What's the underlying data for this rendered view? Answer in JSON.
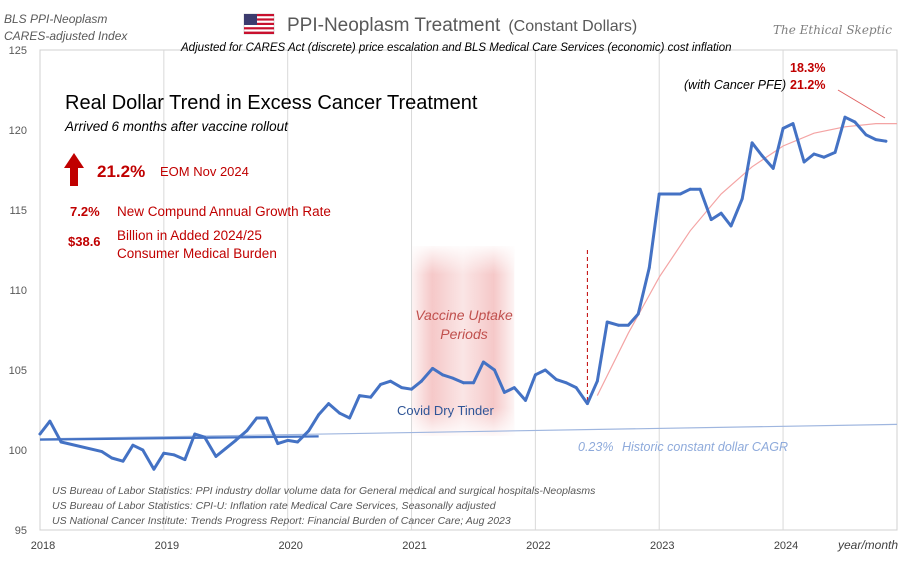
{
  "header": {
    "index_line1": "BLS PPI-Neoplasm",
    "index_line2": "CARES-adjusted Index",
    "title_main": "PPI-Neoplasm  Treatment",
    "title_suffix": "(Constant Dollars)",
    "subtitle": "Adjusted for CARES Act (discrete)  price escalation and BLS Medical Care Services (economic) cost inflation",
    "brand": "The Ethical Skeptic"
  },
  "annotations": {
    "headline": "Real Dollar Trend in Excess Cancer Treatment",
    "subheadline": "Arrived 6 months after vaccine rollout",
    "excess_value": "21.2%",
    "excess_label": "EOM Nov 2024",
    "cagr_value": "7.2%",
    "cagr_label": "New Compund Annual Growth Rate",
    "burden_value": "$38.6",
    "burden_label_1": "Billion in Added 2024/25",
    "burden_label_2": "Consumer Medical Burden",
    "vaccine_line1": "Vaccine Uptake",
    "vaccine_line2": "Periods",
    "dry_tinder": "Covid Dry Tinder",
    "historic_value": "0.23%",
    "historic_label": "Historic constant dollar CAGR",
    "pfe_value_top": "18.3%",
    "pfe_label": "(with Cancer PFE)",
    "pfe_value_bottom": "21.2%",
    "accent_color": "#c00000",
    "series_color": "#4472c4",
    "baseline_color": "#9fb6df",
    "trend_color": "#f4a4a4",
    "flag_icon": "us-flag-icon",
    "arrow_icon": "up-arrow-icon"
  },
  "sources": [
    "US Bureau of Labor Statistics: PPI industry dollar volume data for General medical and surgical hospitals-Neoplasms",
    "US Bureau of Labor Statistics: CPI-U: Inflation rate Medical Care Services, Seasonally adjusted",
    "US National Cancer Institute: Trends Progress Report: Financial Burden of Cancer Care; Aug 2023"
  ],
  "chart_data": {
    "type": "line",
    "xlabel": "year/month",
    "ylabel": "",
    "ylim": [
      95,
      125
    ],
    "xlim": [
      2018.0,
      2024.92
    ],
    "yticks": [
      95,
      100,
      105,
      110,
      115,
      120,
      125
    ],
    "xticks": [
      "2018",
      "2019",
      "2020",
      "2021",
      "2022",
      "2023",
      "2024"
    ],
    "grid": "vertical",
    "series": [
      {
        "x": [
          2018.0,
          2018.08,
          2018.17,
          2018.5,
          2018.58,
          2018.67,
          2018.75,
          2018.83,
          2018.92,
          2019.0,
          2019.08,
          2019.17,
          2019.25,
          2019.33,
          2019.42,
          2019.5,
          2019.58,
          2019.67,
          2019.75,
          2019.83,
          2019.92,
          2020.0,
          2020.08,
          2020.17,
          2020.25,
          2020.33,
          2020.42,
          2020.5,
          2020.58,
          2020.67,
          2020.75,
          2020.83,
          2020.92,
          2021.0,
          2021.08,
          2021.17,
          2021.25,
          2021.33,
          2021.42,
          2021.5,
          2021.58,
          2021.67,
          2021.75,
          2021.83,
          2021.92,
          2022.0,
          2022.08,
          2022.17,
          2022.25,
          2022.33,
          2022.42,
          2022.5,
          2022.58,
          2022.67,
          2022.75,
          2022.83,
          2022.92,
          2023.0,
          2023.08,
          2023.17,
          2023.25,
          2023.33,
          2023.42,
          2023.5,
          2023.58,
          2023.67,
          2023.75,
          2023.83,
          2023.92,
          2024.0,
          2024.08,
          2024.17,
          2024.25,
          2024.33,
          2024.42,
          2024.5,
          2024.58,
          2024.67,
          2024.75,
          2024.83
        ],
        "values": [
          101.0,
          101.8,
          100.5,
          99.9,
          99.5,
          99.3,
          100.3,
          100.0,
          98.8,
          99.8,
          99.7,
          99.4,
          101.0,
          100.8,
          99.6,
          100.1,
          100.6,
          101.2,
          102.0,
          102.0,
          100.4,
          100.6,
          100.5,
          101.2,
          102.2,
          102.9,
          102.3,
          102.0,
          103.4,
          103.3,
          104.1,
          104.3,
          103.9,
          103.8,
          104.3,
          105.1,
          104.7,
          104.5,
          104.2,
          104.2,
          105.5,
          105.0,
          103.6,
          103.9,
          103.1,
          104.7,
          105.0,
          104.4,
          104.2,
          103.9,
          102.9,
          104.3,
          108.0,
          107.8,
          107.8,
          108.5,
          111.4,
          116.0,
          116.0,
          116.0,
          116.3,
          116.3,
          114.4,
          114.8,
          114.0,
          115.7,
          119.2,
          118.4,
          117.6,
          120.1,
          120.4,
          118.0,
          118.5,
          118.3,
          118.6,
          120.8,
          120.5,
          119.7,
          119.4,
          119.3
        ]
      }
    ],
    "baseline_trend": {
      "from": [
        2018.0,
        100.7
      ],
      "to": [
        2024.92,
        101.6
      ]
    },
    "early_segment": {
      "from": [
        2018.0,
        100.65
      ],
      "to": [
        2020.25,
        100.85
      ]
    },
    "pfe_trend_x": [
      2022.5,
      2022.75,
      2023.0,
      2023.25,
      2023.5,
      2023.75,
      2024.0,
      2024.25,
      2024.5,
      2024.75,
      2024.92
    ],
    "pfe_trend_values": [
      103.4,
      107.3,
      110.8,
      113.7,
      116.0,
      117.7,
      119.0,
      119.8,
      120.2,
      120.4,
      120.4
    ],
    "vaccine_band": [
      2021.0,
      2021.83
    ],
    "rollout_marker_x": 2022.42
  }
}
